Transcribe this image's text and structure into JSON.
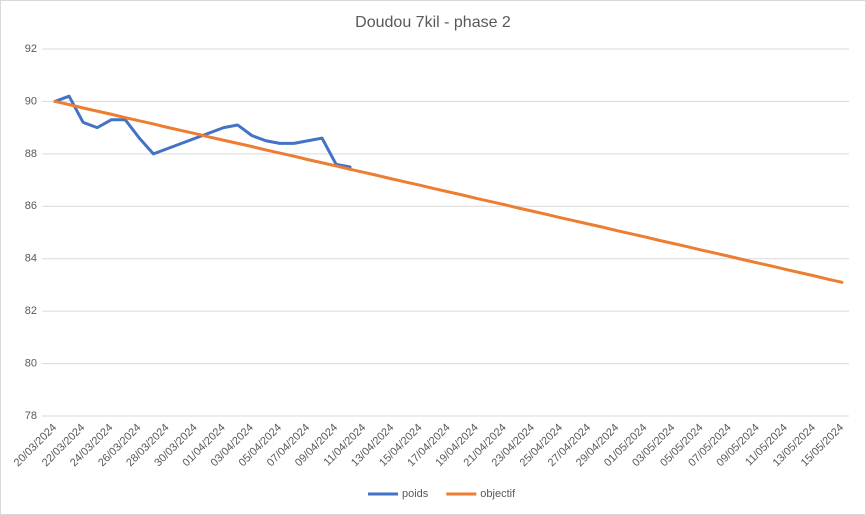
{
  "chart_data": {
    "type": "line",
    "title": "Doudou 7kil - phase 2",
    "categories": [
      "20/03/2024",
      null,
      "22/03/2024",
      null,
      "24/03/2024",
      null,
      "26/03/2024",
      null,
      "28/03/2024",
      null,
      "30/03/2024",
      null,
      "01/04/2024",
      null,
      "03/04/2024",
      null,
      "05/04/2024",
      null,
      "07/04/2024",
      null,
      "09/04/2024",
      null,
      "11/04/2024",
      null,
      "13/04/2024",
      null,
      "15/04/2024",
      null,
      "17/04/2024",
      null,
      "19/04/2024",
      null,
      "21/04/2024",
      null,
      "23/04/2024",
      null,
      "25/04/2024",
      null,
      "27/04/2024",
      null,
      "29/04/2024",
      null,
      "01/05/2024",
      null,
      "03/05/2024",
      null,
      "05/05/2024",
      null,
      "07/05/2024",
      null,
      "09/05/2024",
      null,
      "11/05/2024",
      null,
      "13/05/2024",
      null,
      "15/05/2024"
    ],
    "series": [
      {
        "name": "poids",
        "color": "#4472c4",
        "values": [
          90.0,
          90.2,
          89.2,
          89.0,
          89.3,
          89.3,
          88.6,
          88.0,
          88.2,
          88.4,
          88.6,
          88.8,
          89.0,
          89.1,
          88.7,
          88.5,
          88.4,
          88.4,
          88.5,
          88.6,
          87.6,
          87.5,
          null,
          null,
          null,
          null,
          null,
          null,
          null,
          null,
          null,
          null,
          null,
          null,
          null,
          null,
          null,
          null,
          null,
          null,
          null,
          null,
          null,
          null,
          null,
          null,
          null,
          null,
          null,
          null,
          null,
          null,
          null,
          null,
          null,
          null,
          null
        ]
      },
      {
        "name": "objectif",
        "color": "#ed7d31",
        "values": [
          90.0,
          89.88,
          89.75,
          89.63,
          89.51,
          89.38,
          89.26,
          89.14,
          89.01,
          88.89,
          88.77,
          88.64,
          88.52,
          88.4,
          88.28,
          88.15,
          88.03,
          87.91,
          87.78,
          87.66,
          87.54,
          87.41,
          87.29,
          87.17,
          87.04,
          86.92,
          86.8,
          86.67,
          86.55,
          86.43,
          86.3,
          86.18,
          86.06,
          85.93,
          85.81,
          85.69,
          85.56,
          85.44,
          85.32,
          85.2,
          85.07,
          84.95,
          84.83,
          84.7,
          84.58,
          84.46,
          84.33,
          84.21,
          84.09,
          83.96,
          83.84,
          83.72,
          83.59,
          83.47,
          83.35,
          83.22,
          83.1
        ]
      }
    ],
    "ylim": [
      78,
      92
    ],
    "yticks": [
      78,
      80,
      82,
      84,
      86,
      88,
      90,
      92
    ],
    "grid": true,
    "legend": "bottom"
  }
}
